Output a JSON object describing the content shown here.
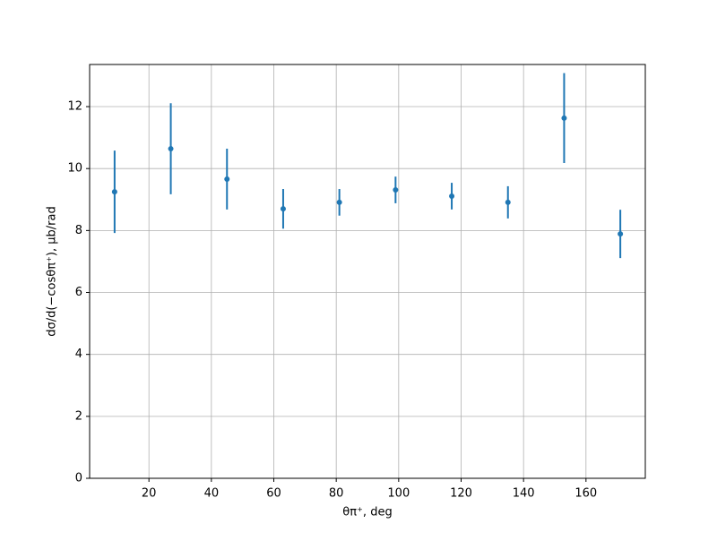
{
  "chart_data": {
    "type": "errorbar",
    "x_label": "θπ⁺, deg",
    "y_label": "dσ/d(−cosθπ⁺), μb/rad",
    "x": [
      9,
      27,
      45,
      63,
      81,
      99,
      117,
      135,
      153,
      171
    ],
    "series": [
      {
        "color": "#1f77b4",
        "values": [
          9.25,
          10.64,
          9.66,
          8.7,
          8.91,
          9.31,
          9.11,
          8.91,
          11.63,
          7.89
        ],
        "errors": [
          1.33,
          1.47,
          0.98,
          0.64,
          0.43,
          0.43,
          0.43,
          0.52,
          1.45,
          0.78
        ]
      }
    ],
    "xlim": [
      1,
      179
    ],
    "ylim": [
      0,
      13.36
    ],
    "xticks": [
      20,
      40,
      60,
      80,
      100,
      120,
      140,
      160
    ],
    "yticks": [
      0,
      2,
      4,
      6,
      8,
      10,
      12
    ],
    "grid": true
  }
}
